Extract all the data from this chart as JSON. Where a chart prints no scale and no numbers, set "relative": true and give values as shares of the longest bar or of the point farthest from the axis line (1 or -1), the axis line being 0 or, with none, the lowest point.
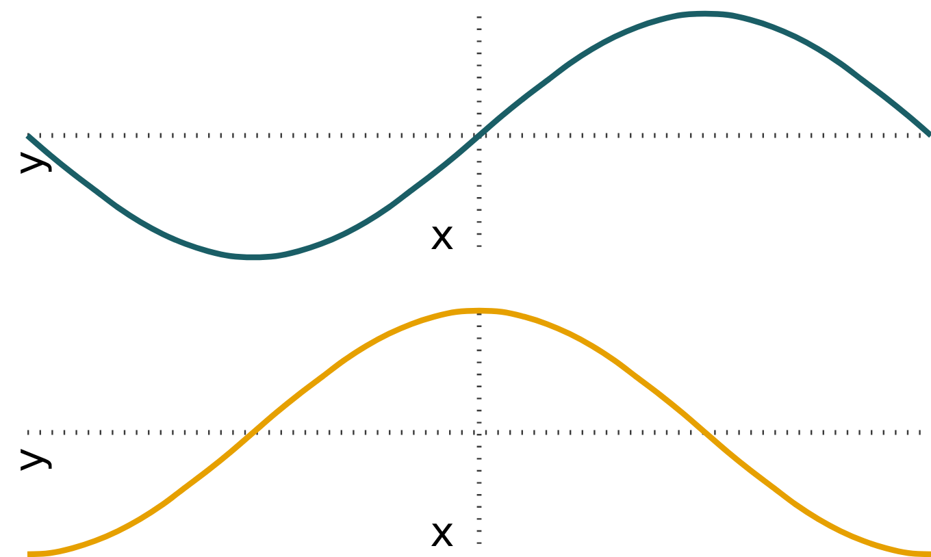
{
  "chart_data": [
    {
      "type": "line",
      "relative": true,
      "xlabel": "x",
      "ylabel": "y",
      "color": "#1a5e66",
      "categories": [
        null,
        null,
        null,
        null,
        null,
        null,
        null,
        null,
        null,
        null,
        null,
        null,
        null,
        null,
        null,
        null,
        null,
        null,
        null,
        null,
        null,
        null,
        null,
        null,
        null,
        null,
        null,
        null,
        null,
        null,
        null,
        null,
        null,
        null,
        null,
        null,
        null,
        null,
        null,
        null,
        null
      ],
      "values": [
        0,
        -0.16,
        -0.31,
        -0.45,
        -0.59,
        -0.71,
        -0.81,
        -0.89,
        -0.95,
        -0.99,
        -1,
        -0.99,
        -0.95,
        -0.89,
        -0.81,
        -0.71,
        -0.59,
        -0.45,
        -0.31,
        -0.16,
        0,
        0.16,
        0.31,
        0.45,
        0.59,
        0.71,
        0.81,
        0.89,
        0.95,
        0.99,
        1,
        0.99,
        0.95,
        0.89,
        0.81,
        0.71,
        0.59,
        0.45,
        0.31,
        0.16,
        0
      ]
    },
    {
      "type": "line",
      "relative": true,
      "xlabel": "x",
      "ylabel": "y",
      "color": "#e6a000",
      "categories": [
        null,
        null,
        null,
        null,
        null,
        null,
        null,
        null,
        null,
        null,
        null,
        null,
        null,
        null,
        null,
        null,
        null,
        null,
        null,
        null,
        null,
        null,
        null,
        null,
        null,
        null,
        null,
        null,
        null,
        null,
        null,
        null,
        null,
        null,
        null,
        null,
        null,
        null,
        null,
        null,
        null
      ],
      "values": [
        -1,
        -0.99,
        -0.95,
        -0.89,
        -0.81,
        -0.71,
        -0.59,
        -0.45,
        -0.31,
        -0.16,
        0,
        0.16,
        0.31,
        0.45,
        0.59,
        0.71,
        0.81,
        0.89,
        0.95,
        0.99,
        1,
        0.99,
        0.95,
        0.89,
        0.81,
        0.71,
        0.59,
        0.45,
        0.31,
        0.16,
        0,
        -0.16,
        -0.31,
        -0.45,
        -0.59,
        -0.71,
        -0.81,
        -0.89,
        -0.95,
        -0.99,
        -1
      ]
    }
  ]
}
